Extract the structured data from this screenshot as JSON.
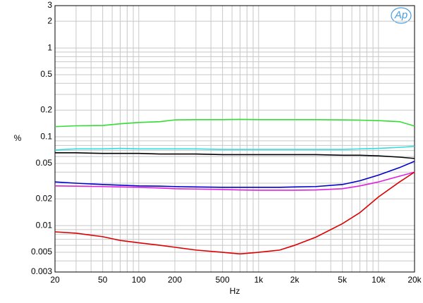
{
  "chart_data": {
    "type": "line",
    "logo": "Ap",
    "xlabel": "Hz",
    "ylabel": "%",
    "x": [
      20,
      30,
      50,
      70,
      100,
      150,
      200,
      300,
      500,
      700,
      1000,
      1500,
      2000,
      3000,
      5000,
      7000,
      10000,
      15000,
      20000
    ],
    "series": [
      {
        "color": "#33dd33",
        "values": [
          0.13,
          0.133,
          0.134,
          0.14,
          0.145,
          0.148,
          0.155,
          0.156,
          0.156,
          0.157,
          0.156,
          0.156,
          0.156,
          0.156,
          0.155,
          0.154,
          0.152,
          0.148,
          0.132
        ]
      },
      {
        "color": "#33dddd",
        "values": [
          0.071,
          0.073,
          0.073,
          0.074,
          0.073,
          0.073,
          0.073,
          0.073,
          0.072,
          0.072,
          0.072,
          0.072,
          0.072,
          0.072,
          0.072,
          0.073,
          0.074,
          0.076,
          0.078
        ]
      },
      {
        "color": "#000000",
        "values": [
          0.066,
          0.066,
          0.065,
          0.065,
          0.065,
          0.064,
          0.064,
          0.064,
          0.063,
          0.063,
          0.063,
          0.063,
          0.063,
          0.063,
          0.062,
          0.062,
          0.061,
          0.059,
          0.057
        ]
      },
      {
        "color": "#0000cc",
        "values": [
          0.031,
          0.03,
          0.029,
          0.0285,
          0.028,
          0.0278,
          0.0275,
          0.0272,
          0.027,
          0.027,
          0.027,
          0.027,
          0.0272,
          0.0275,
          0.029,
          0.032,
          0.037,
          0.045,
          0.053
        ]
      },
      {
        "color": "#dd22dd",
        "values": [
          0.028,
          0.0278,
          0.0275,
          0.0272,
          0.027,
          0.0265,
          0.026,
          0.0258,
          0.0255,
          0.0252,
          0.025,
          0.025,
          0.025,
          0.0252,
          0.026,
          0.028,
          0.031,
          0.036,
          0.04
        ]
      },
      {
        "color": "#dd0000",
        "values": [
          0.0085,
          0.0082,
          0.0075,
          0.0068,
          0.0064,
          0.006,
          0.0057,
          0.0053,
          0.005,
          0.0048,
          0.005,
          0.0053,
          0.006,
          0.0074,
          0.0105,
          0.014,
          0.021,
          0.031,
          0.04
        ]
      }
    ],
    "xscale": "log",
    "yscale": "log",
    "xlim": [
      20,
      20000
    ],
    "ylim": [
      0.003,
      3
    ],
    "xticks": [
      20,
      50,
      100,
      200,
      500,
      {
        "value": 1000,
        "label": "1k"
      },
      {
        "value": 2000,
        "label": "2k"
      },
      {
        "value": 5000,
        "label": "5k"
      },
      {
        "value": 10000,
        "label": "10k"
      },
      {
        "value": 20000,
        "label": "20k"
      }
    ],
    "yticks": [
      0.003,
      0.005,
      0.01,
      0.02,
      0.05,
      0.1,
      0.2,
      0.5,
      1,
      2,
      3
    ],
    "x_minor_grid": [
      30,
      40,
      60,
      70,
      80,
      90,
      300,
      400,
      600,
      700,
      800,
      900,
      3000,
      4000,
      6000,
      7000,
      8000,
      9000
    ],
    "y_minor_grid": [
      0.004,
      0.006,
      0.007,
      0.008,
      0.009,
      0.03,
      0.04,
      0.06,
      0.07,
      0.08,
      0.09,
      0.3,
      0.4,
      0.6,
      0.7,
      0.8,
      0.9
    ],
    "grid": true
  }
}
